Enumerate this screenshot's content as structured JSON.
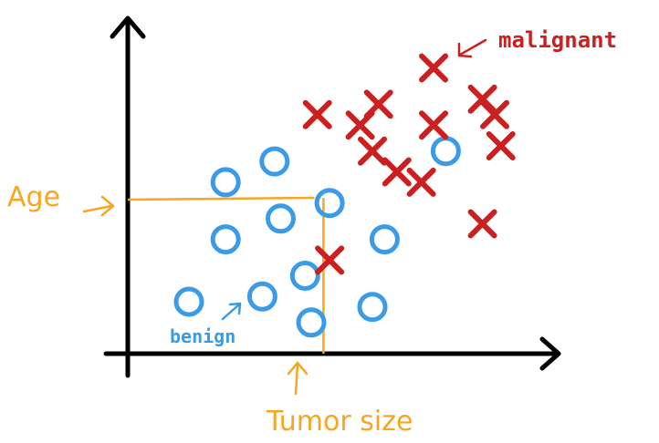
{
  "labels": {
    "y_axis": "Age",
    "x_axis": "Tumor size",
    "benign": "benign",
    "malignant": "malignant"
  },
  "colors": {
    "axis": "#000000",
    "benign": "#3b9be6",
    "malignant": "#cc1f1f",
    "annotation": "#f5a623"
  },
  "chart_data": {
    "type": "scatter",
    "xlabel": "Tumor size",
    "ylabel": "Age",
    "series": [
      {
        "name": "benign",
        "marker": "circle",
        "points": [
          [
            1.0,
            1.0
          ],
          [
            2.2,
            1.1
          ],
          [
            3.0,
            0.6
          ],
          [
            4.0,
            0.9
          ],
          [
            2.9,
            1.5
          ],
          [
            1.6,
            2.2
          ],
          [
            2.5,
            2.6
          ],
          [
            3.3,
            2.9
          ],
          [
            4.2,
            2.2
          ],
          [
            1.6,
            3.3
          ],
          [
            2.4,
            3.7
          ],
          [
            5.2,
            3.9
          ]
        ]
      },
      {
        "name": "malignant",
        "marker": "x",
        "points": [
          [
            3.3,
            1.8
          ],
          [
            3.1,
            4.6
          ],
          [
            3.8,
            4.4
          ],
          [
            4.0,
            3.9
          ],
          [
            4.1,
            4.8
          ],
          [
            4.4,
            3.5
          ],
          [
            4.8,
            3.3
          ],
          [
            5.0,
            4.4
          ],
          [
            5.0,
            5.5
          ],
          [
            5.8,
            4.9
          ],
          [
            6.0,
            4.6
          ],
          [
            6.1,
            4.0
          ],
          [
            5.8,
            2.5
          ]
        ]
      }
    ],
    "annotations": {
      "x_threshold": 3.2,
      "y_threshold": 3.0
    }
  }
}
